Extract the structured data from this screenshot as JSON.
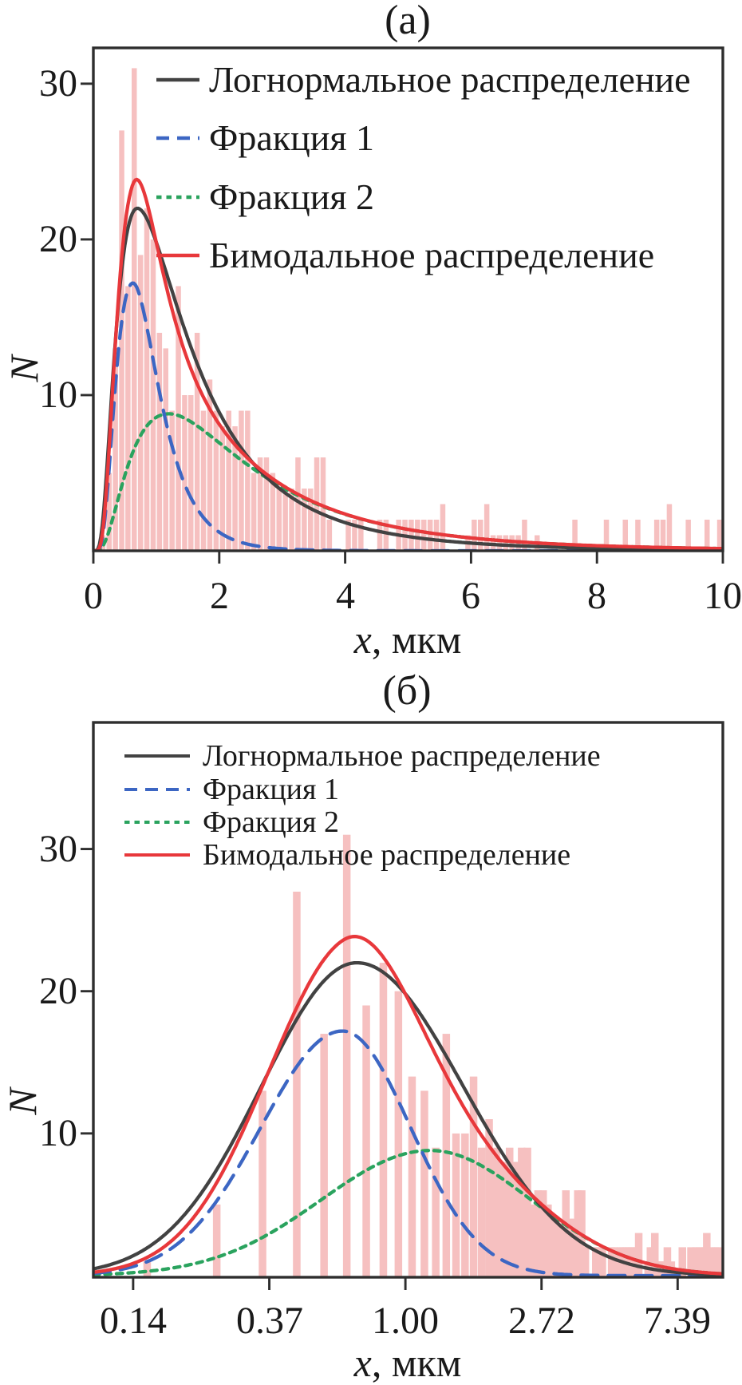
{
  "figure": {
    "background": "#ffffff",
    "text_color": "#1a1a1a",
    "axis_color": "#2e2e2e"
  },
  "legend": {
    "entries": [
      {
        "label": "Логнормальное распределение",
        "curve": "lognormal"
      },
      {
        "label": "Фракция 1",
        "curve": "fraction1"
      },
      {
        "label": "Фракция 2",
        "curve": "fraction2"
      },
      {
        "label": "Бимодальное распределение",
        "curve": "bimodal"
      }
    ]
  },
  "chart_data": {
    "type": "histogram+curves",
    "bin_width_um": 0.1,
    "bar_color": "#f6c0c0",
    "bars": [
      [
        0.15,
        1
      ],
      [
        0.25,
        5
      ],
      [
        0.35,
        13
      ],
      [
        0.45,
        27
      ],
      [
        0.55,
        17
      ],
      [
        0.65,
        31
      ],
      [
        0.75,
        19
      ],
      [
        0.85,
        22
      ],
      [
        0.95,
        20
      ],
      [
        1.05,
        14
      ],
      [
        1.15,
        13
      ],
      [
        1.25,
        9
      ],
      [
        1.35,
        17
      ],
      [
        1.45,
        10
      ],
      [
        1.55,
        10
      ],
      [
        1.65,
        14
      ],
      [
        1.75,
        9
      ],
      [
        1.85,
        11
      ],
      [
        1.95,
        9
      ],
      [
        2.05,
        8
      ],
      [
        2.15,
        9
      ],
      [
        2.25,
        8
      ],
      [
        2.35,
        9
      ],
      [
        2.45,
        9
      ],
      [
        2.55,
        5
      ],
      [
        2.65,
        6
      ],
      [
        2.75,
        6
      ],
      [
        2.85,
        5
      ],
      [
        2.95,
        4
      ],
      [
        3.05,
        4
      ],
      [
        3.15,
        4
      ],
      [
        3.25,
        6
      ],
      [
        3.35,
        4
      ],
      [
        3.45,
        4
      ],
      [
        3.55,
        6
      ],
      [
        3.65,
        6
      ],
      [
        3.75,
        2
      ],
      [
        4.05,
        2
      ],
      [
        4.15,
        2
      ],
      [
        4.25,
        2
      ],
      [
        4.55,
        2
      ],
      [
        4.65,
        2
      ],
      [
        4.85,
        2
      ],
      [
        4.95,
        2
      ],
      [
        5.05,
        2
      ],
      [
        5.15,
        2
      ],
      [
        5.25,
        2
      ],
      [
        5.35,
        2
      ],
      [
        5.45,
        2
      ],
      [
        5.55,
        3
      ],
      [
        5.95,
        1
      ],
      [
        6.05,
        2
      ],
      [
        6.15,
        2
      ],
      [
        6.25,
        3
      ],
      [
        6.35,
        1
      ],
      [
        6.45,
        1
      ],
      [
        6.55,
        1
      ],
      [
        6.65,
        1
      ],
      [
        6.75,
        1
      ],
      [
        6.85,
        2
      ],
      [
        7.05,
        1
      ],
      [
        7.65,
        2
      ],
      [
        8.15,
        2
      ],
      [
        8.45,
        2
      ],
      [
        8.65,
        2
      ],
      [
        8.95,
        2
      ],
      [
        9.05,
        2
      ],
      [
        9.15,
        3
      ],
      [
        9.45,
        2
      ],
      [
        9.75,
        2
      ],
      [
        9.95,
        2
      ]
    ],
    "curves": [
      {
        "id": "lognormal",
        "label": "Логнормальное распределение",
        "color": "#424242",
        "style": "solid",
        "peak_x": 0.7,
        "peak_y": 22.0,
        "sigma_left": 0.7,
        "sigma_right": 0.78
      },
      {
        "id": "fraction1",
        "label": "Фракция 1",
        "color": "#3c66c3",
        "style": "dashed",
        "peak_x": 0.63,
        "peak_y": 17.2,
        "sigma_left": 0.6,
        "sigma_right": 0.5
      },
      {
        "id": "fraction2",
        "label": "Фракция 2",
        "color": "#2aa35e",
        "style": "dotted",
        "peak_x": 1.2,
        "peak_y": 8.8,
        "sigma_left": 0.8,
        "sigma_right": 0.74
      },
      {
        "id": "bimodal",
        "label": "Бимодальное распределение",
        "color": "#e8383b",
        "style": "solid",
        "sum_of": [
          "fraction1",
          "fraction2"
        ]
      }
    ],
    "subplots": [
      {
        "id": "a",
        "title": "(а)",
        "xlabel_var": "x",
        "xlabel_rest": ", мкм",
        "ylabel": "N",
        "x_scale": "linear",
        "xlim": [
          0,
          10
        ],
        "ylim": [
          0,
          32.3
        ],
        "xticks": [
          {
            "v": 0,
            "label": "0"
          },
          {
            "v": 2,
            "label": "2"
          },
          {
            "v": 4,
            "label": "4"
          },
          {
            "v": 6,
            "label": "6"
          },
          {
            "v": 8,
            "label": "8"
          },
          {
            "v": 10,
            "label": "10"
          }
        ],
        "yticks": [
          {
            "v": 10,
            "label": "10"
          },
          {
            "v": 20,
            "label": "20"
          },
          {
            "v": 30,
            "label": "30"
          }
        ]
      },
      {
        "id": "b",
        "title": "(б)",
        "xlabel_var": "x",
        "xlabel_rest": ", мкм",
        "ylabel": "N",
        "x_scale": "log",
        "xlim": [
          0.101,
          10.3
        ],
        "ylim": [
          0,
          38.9
        ],
        "xticks": [
          {
            "v": 0.1353,
            "label": "0.14"
          },
          {
            "v": 0.3679,
            "label": "0.37"
          },
          {
            "v": 1.0,
            "label": "1.00"
          },
          {
            "v": 2.7183,
            "label": "2.72"
          },
          {
            "v": 7.389,
            "label": "7.39"
          }
        ],
        "yticks": [
          {
            "v": 10,
            "label": "10"
          },
          {
            "v": 20,
            "label": "20"
          },
          {
            "v": 30,
            "label": "30"
          }
        ]
      }
    ]
  }
}
